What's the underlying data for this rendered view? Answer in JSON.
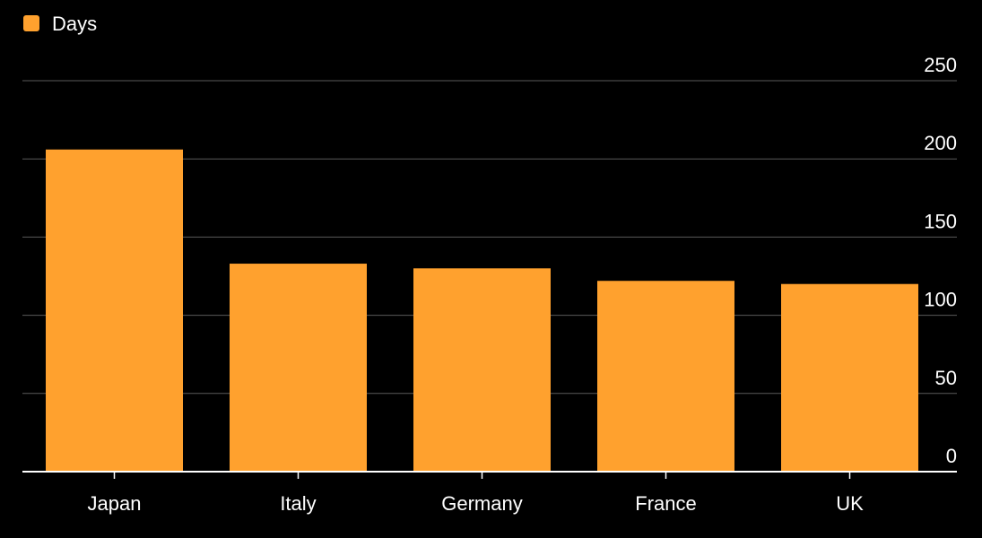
{
  "chart_data": {
    "type": "bar",
    "categories": [
      "Japan",
      "Italy",
      "Germany",
      "France",
      "UK"
    ],
    "series": [
      {
        "name": "Days",
        "values": [
          206,
          133,
          130,
          122,
          120
        ]
      }
    ],
    "title": "",
    "xlabel": "",
    "ylabel": "",
    "ylim": [
      0,
      250
    ],
    "yticks": [
      0,
      50,
      100,
      150,
      200,
      250
    ],
    "ytick_labels": [
      "0",
      "50",
      "100",
      "150",
      "200",
      "250"
    ],
    "y_axis_position": "right",
    "grid": true,
    "legend_position": "top-left",
    "colors": {
      "bar": "#ffa12e",
      "background": "#000000",
      "grid": "#5a5a5a",
      "text": "#ffffff"
    }
  }
}
